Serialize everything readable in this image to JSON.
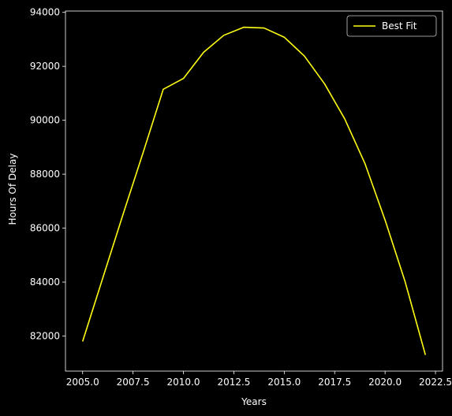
{
  "chart_data": {
    "type": "line",
    "xlabel": "Years",
    "ylabel": "Hours Of Delay",
    "xlim": [
      2004.15,
      2022.85
    ],
    "ylim": [
      80700,
      94050
    ],
    "xticks": [
      2005.0,
      2007.5,
      2010.0,
      2012.5,
      2015.0,
      2017.5,
      2020.0,
      2022.5
    ],
    "xtick_labels": [
      "2005.0",
      "2007.5",
      "2010.0",
      "2012.5",
      "2015.0",
      "2017.5",
      "2020.0",
      "2022.5"
    ],
    "yticks": [
      82000,
      84000,
      86000,
      88000,
      90000,
      92000,
      94000
    ],
    "ytick_labels": [
      "82000",
      "84000",
      "86000",
      "88000",
      "90000",
      "92000",
      "94000"
    ],
    "grid": false,
    "legend_position": "top-right",
    "series": [
      {
        "name": "Best Fit",
        "color": "#ffff14",
        "x": [
          2005,
          2006,
          2007,
          2008,
          2009,
          2010,
          2011,
          2012,
          2013,
          2014,
          2015,
          2016,
          2017,
          2018,
          2019,
          2020,
          2021,
          2022
        ],
        "y": [
          81800,
          84150,
          86500,
          88800,
          91150,
          91550,
          92520,
          93150,
          93450,
          93420,
          93080,
          92380,
          91350,
          90050,
          88400,
          86300,
          84000,
          81300
        ]
      }
    ]
  },
  "colors": {
    "background": "#000000",
    "foreground": "#ffffff",
    "series": "#ffff14"
  }
}
